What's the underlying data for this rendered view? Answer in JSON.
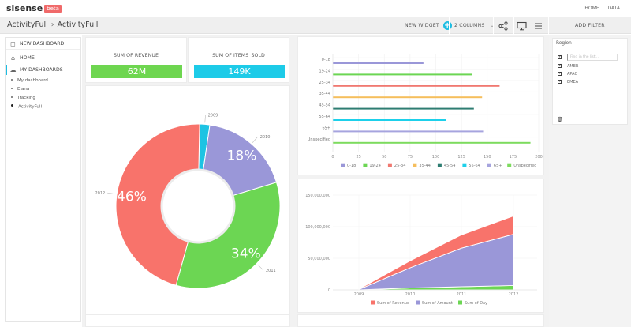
{
  "app": {
    "logo": "sisense",
    "logo_badge": "beta",
    "top_links": [
      "HOME",
      "DATA"
    ]
  },
  "toolbar": {
    "breadcrumb": [
      "ActivityFull",
      "ActivityFull"
    ],
    "new_widget": "NEW WIDGET",
    "columns": "2 COLUMNS",
    "add_filter": "ADD FILTER",
    "icons": [
      "share-icon",
      "presentation-icon",
      "menu-icon"
    ]
  },
  "sidebar": {
    "new_dashboard": "NEW DASHBOARD",
    "home": "HOME",
    "my_dashboards": "MY DASHBOARDS",
    "dashboards": [
      "My dashboard",
      "Elana",
      "Tracking",
      "ActivityFull"
    ],
    "current": "ActivityFull"
  },
  "kpis": [
    {
      "title": "SUM OF REVENUE",
      "value": "62M",
      "color": "#6ed650"
    },
    {
      "title": "SUM OF ITEMS_SOLD",
      "value": "149K",
      "color": "#1dcbe8"
    }
  ],
  "filters": {
    "title": "Region",
    "search_placeholder": "Find in the list...",
    "items": [
      {
        "label": "AMER",
        "checked": true
      },
      {
        "label": "APAC",
        "checked": true
      },
      {
        "label": "EMEA",
        "checked": true
      }
    ]
  },
  "chart_data": [
    {
      "type": "pie",
      "variant": "donut",
      "title": "",
      "categories": [
        "2009",
        "2010",
        "2011",
        "2012"
      ],
      "values": [
        2,
        18,
        34,
        46
      ],
      "data_labels": [
        "",
        "18%",
        "34%",
        "46%"
      ],
      "colors": [
        "#1dc3e3",
        "#9a97d8",
        "#6cd653",
        "#f8736b"
      ]
    },
    {
      "type": "bar",
      "orientation": "horizontal",
      "title": "",
      "categories": [
        "0-18",
        "19-24",
        "25-34",
        "35-44",
        "45-54",
        "55-64",
        "65+",
        "Unspecified"
      ],
      "values": [
        88,
        135,
        162,
        145,
        137,
        110,
        146,
        192
      ],
      "colors": [
        "#9a97d8",
        "#6cd653",
        "#f07870",
        "#f5be5c",
        "#2e7d72",
        "#1dd0ea",
        "#a6a4de",
        "#7ddb5e"
      ],
      "xlim": [
        0,
        200
      ],
      "xticks": [
        0,
        25,
        50,
        75,
        100,
        125,
        150,
        175,
        200
      ],
      "legend": "bottom",
      "grid": true
    },
    {
      "type": "area",
      "stacked": true,
      "title": "",
      "x": [
        "2009",
        "2010",
        "2011",
        "2012"
      ],
      "series": [
        {
          "name": "Sum of Revenue",
          "color": "#f8736b",
          "values": [
            500000,
            11000000,
            21000000,
            29000000
          ]
        },
        {
          "name": "Sum of Amount",
          "color": "#9a97d8",
          "values": [
            500000,
            32000000,
            61000000,
            81000000
          ]
        },
        {
          "name": "Sum of Day",
          "color": "#6cd653",
          "values": [
            100000,
            3000000,
            5000000,
            7000000
          ]
        }
      ],
      "ylim": [
        0,
        150000000
      ],
      "yticks": [
        "0",
        "50,000,000",
        "100,000,000",
        "150,000,000"
      ],
      "legend": "bottom",
      "grid": true
    }
  ]
}
